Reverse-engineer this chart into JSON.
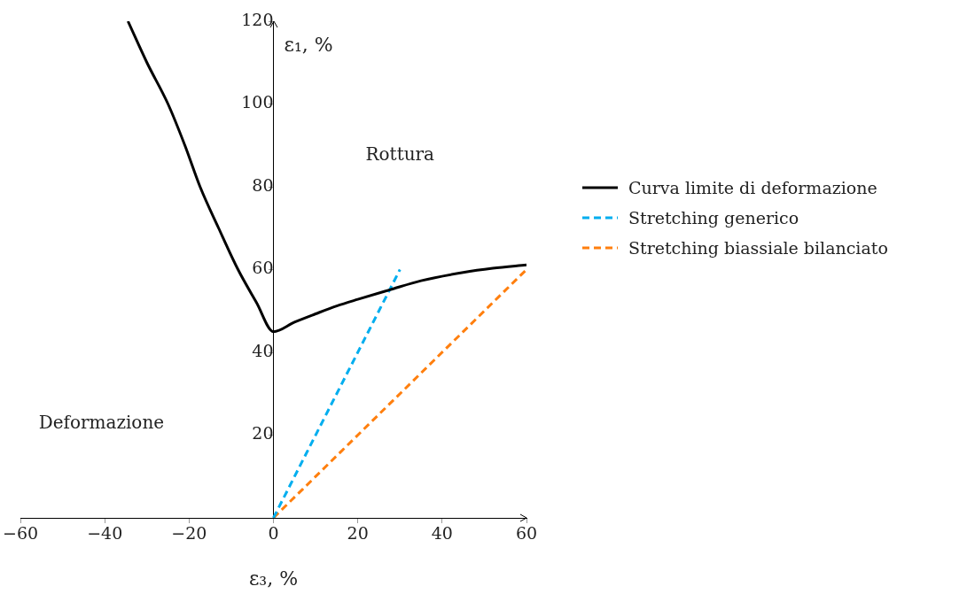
{
  "chart_data": {
    "type": "line",
    "xlabel": "ε₃, %",
    "ylabel": "ε₁, %",
    "xlim": [
      -60,
      60
    ],
    "xticks": [
      -60,
      -40,
      -20,
      0,
      20,
      40,
      60
    ],
    "ylim": [
      0,
      120
    ],
    "yticks": [
      20,
      40,
      60,
      80,
      100,
      120
    ],
    "grid": false,
    "legend": "right",
    "line_style": "solid",
    "marker": "none",
    "series": [
      {
        "name": "Curva limite di deformazione",
        "color": "#000000",
        "x": [
          -34.5,
          -30,
          -25,
          -21,
          -17.4,
          -13,
          -8.4,
          -4,
          0,
          5,
          10,
          15,
          20,
          27.6,
          35,
          45,
          52,
          60
        ],
        "values": [
          120,
          110,
          100,
          90,
          80,
          70,
          60,
          52,
          45,
          47.3,
          49.3,
          51.2,
          52.8,
          55.1,
          57.3,
          59.3,
          60.3,
          61.1
        ]
      },
      {
        "name": "Stretching generico",
        "color": "#00aeef",
        "line_style": "dashed",
        "x": [
          0,
          30
        ],
        "values": [
          0,
          60
        ]
      },
      {
        "name": "Stretching biassiale bilanciato",
        "color": "#ff7f0e",
        "line_style": "dashed",
        "x": [
          0,
          60
        ],
        "values": [
          0,
          60
        ]
      }
    ],
    "annotations": [
      "Rottura",
      "Deformazione"
    ]
  }
}
